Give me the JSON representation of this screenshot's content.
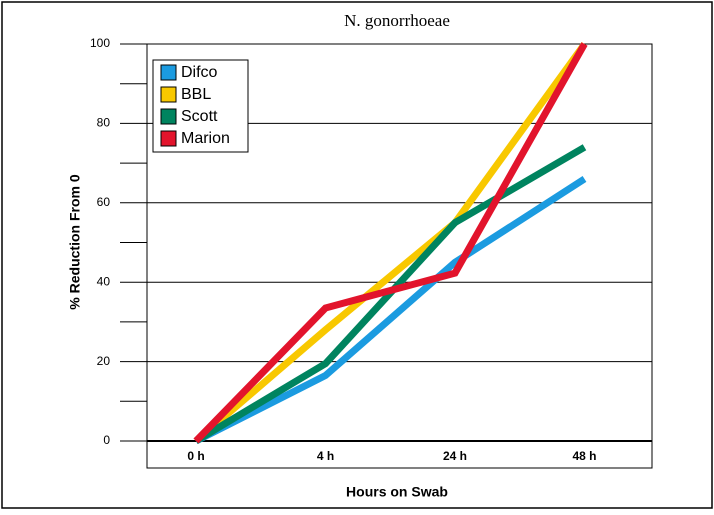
{
  "chart_data": {
    "type": "line",
    "title": "N. gonorrhoeae",
    "x_label": "Hours on Swab",
    "y_label": "% Reduction From 0",
    "categories": [
      "0 h",
      "4 h",
      "24 h",
      "48 h"
    ],
    "series": [
      {
        "name": "Difco",
        "color": "#1b9be0",
        "values": [
          0,
          16.5,
          45,
          66
        ]
      },
      {
        "name": "BBL",
        "color": "#f8c800",
        "values": [
          0,
          28,
          55,
          100
        ]
      },
      {
        "name": "Scott",
        "color": "#00845f",
        "values": [
          0,
          19.5,
          55,
          74
        ]
      },
      {
        "name": "Marion",
        "color": "#e2142c",
        "values": [
          0,
          33.5,
          42.3,
          100
        ]
      }
    ],
    "ylim": [
      0,
      100
    ],
    "yticks": [
      0,
      20,
      40,
      60,
      80,
      100
    ],
    "yminorticks": [
      10,
      30,
      50,
      70,
      90
    ],
    "grid": true,
    "legend": "upper left"
  }
}
